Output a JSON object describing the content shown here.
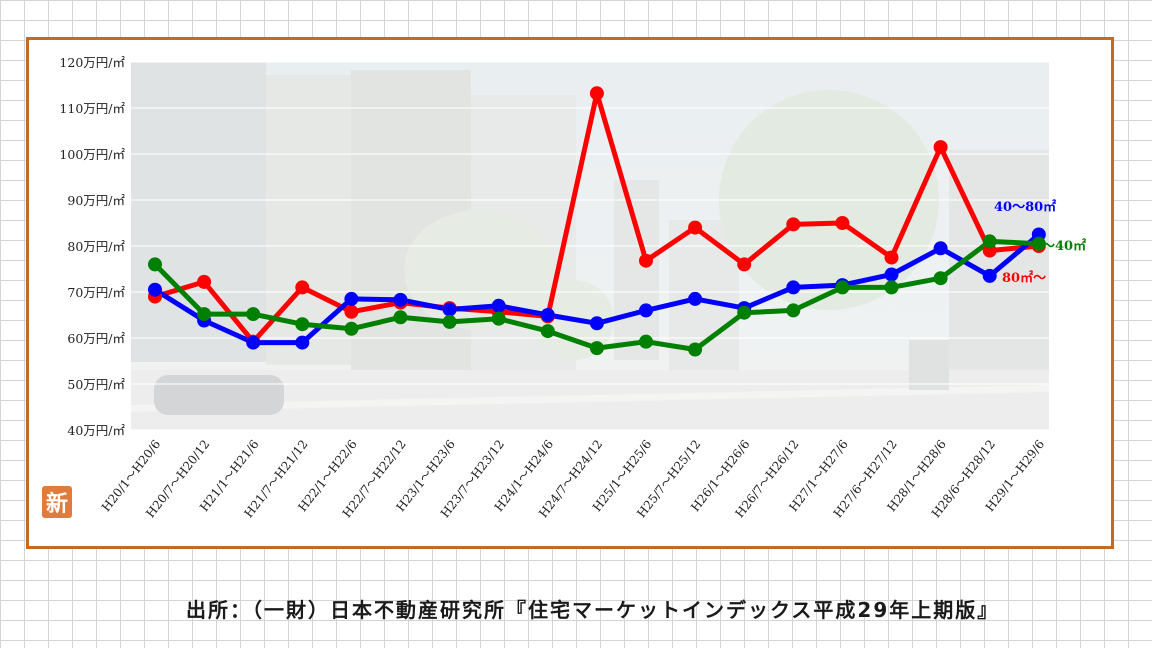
{
  "source_note": "出所：（一財）日本不動産研究所『住宅マーケットインデックス平成29年上期版』",
  "badge": {
    "text": "新"
  },
  "chart_data": {
    "type": "line",
    "title": "",
    "xlabel": "",
    "ylabel": "",
    "ylim": [
      40,
      120
    ],
    "y_ticks": [
      40,
      50,
      60,
      70,
      80,
      90,
      100,
      110,
      120
    ],
    "y_tick_suffix": "万円/㎡",
    "grid": "horizontal",
    "background": "faded street photo",
    "categories": [
      "H20/1～H20/6",
      "H20/7～H20/12",
      "H21/1～H21/6",
      "H21/7～H21/12",
      "H22/1～H22/6",
      "H22/7～H22/12",
      "H23/1～H23/6",
      "H23/7～H23/12",
      "H24/1～H24/6",
      "H24/7～H24/12",
      "H25/1～H25/6",
      "H25/7～H25/12",
      "H26/1～H26/6",
      "H26/7～H26/12",
      "H27/1～H27/6",
      "H27/6～H27/12",
      "H28/1～H28/6",
      "H28/6～H28/12",
      "H29/1～H29/6"
    ],
    "series": [
      {
        "name": "40～80㎡",
        "color": "#0000ff",
        "values": [
          70.5,
          63.8,
          59,
          59,
          68.5,
          68.3,
          66.2,
          67,
          65,
          63.2,
          66,
          68.5,
          66.5,
          71,
          71.5,
          73.8,
          79.5,
          73.5,
          82.5
        ]
      },
      {
        "name": "～40㎡",
        "color": "#008000",
        "values": [
          76,
          65.2,
          65.2,
          63,
          62,
          64.5,
          63.5,
          64.2,
          61.5,
          57.8,
          59.2,
          57.5,
          65.5,
          66,
          71,
          71,
          73,
          81,
          80.5
        ]
      },
      {
        "name": "80㎡～",
        "color": "#ff0000",
        "values": [
          69,
          72.2,
          59.2,
          71,
          65.7,
          67.7,
          66.5,
          65.7,
          64.7,
          113.2,
          76.8,
          84,
          76,
          84.7,
          85,
          77.5,
          101.5,
          79,
          80
        ]
      }
    ]
  }
}
